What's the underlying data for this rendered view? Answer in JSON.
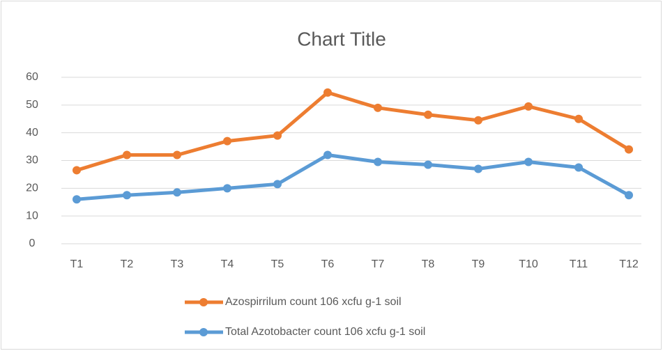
{
  "chart_data": {
    "type": "line",
    "title": "Chart Title",
    "categories": [
      "T1",
      "T2",
      "T3",
      "T4",
      "T5",
      "T6",
      "T7",
      "T8",
      "T9",
      "T10",
      "T11",
      "T12"
    ],
    "series": [
      {
        "name": "Azospirrilum count 106 xcfu g-1 soil",
        "color": "#ed7d31",
        "values": [
          26.5,
          32,
          32,
          37,
          39,
          54.5,
          49,
          46.5,
          44.5,
          49.5,
          45,
          34
        ]
      },
      {
        "name": "Total Azotobacter count 106 xcfu g-1 soil",
        "color": "#5b9bd5",
        "values": [
          16,
          17.5,
          18.5,
          20,
          21.5,
          32,
          29.5,
          28.5,
          27,
          29.5,
          27.5,
          17.5
        ]
      }
    ],
    "ylim": [
      0,
      60
    ],
    "yticks": [
      0,
      10,
      20,
      30,
      40,
      50,
      60
    ],
    "grid": true,
    "legend": "bottom"
  }
}
